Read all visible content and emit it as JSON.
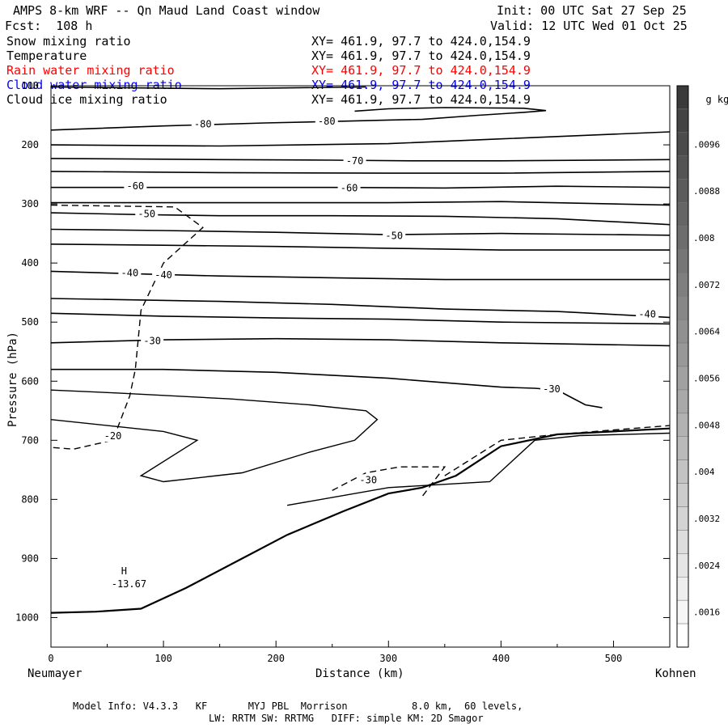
{
  "header": {
    "title": "AMPS 8-km WRF -- Qn Maud Land Coast window",
    "init": "Init: 00 UTC Sat 27 Sep 25",
    "fcst": "Fcst:  108 h",
    "valid": "Valid: 12 UTC Wed 01 Oct 25"
  },
  "fields": [
    {
      "name": "Snow mixing ratio",
      "xy": "XY= 461.9, 97.7 to 424.0,154.9",
      "color": "#000000"
    },
    {
      "name": "Temperature",
      "xy": "XY= 461.9, 97.7 to 424.0,154.9",
      "color": "#000000"
    },
    {
      "name": "Rain water mixing ratio",
      "xy": "XY= 461.9, 97.7 to 424.0,154.9",
      "color": "#ff0000"
    },
    {
      "name": "Cloud water mixing ratio",
      "xy": "XY= 461.9, 97.7 to 424.0,154.9",
      "color": "#0000ff"
    },
    {
      "name": "Cloud ice mixing ratio",
      "xy": "XY= 461.9, 97.7 to 424.0,154.9",
      "color": "#000000"
    }
  ],
  "chart_data": {
    "type": "contour",
    "xlabel": "Distance (km)",
    "ylabel": "Pressure (hPa)",
    "xlim": [
      0,
      550
    ],
    "ylim": [
      1050,
      100
    ],
    "x_ticks": [
      0,
      100,
      200,
      300,
      400,
      500
    ],
    "y_ticks": [
      100,
      200,
      300,
      400,
      500,
      600,
      700,
      800,
      900,
      1000
    ],
    "x_endpoints": {
      "left": "Neumayer",
      "right": "Kohnen"
    },
    "isotherms": [
      {
        "label": "-80",
        "points": [
          [
            0,
            102
          ],
          [
            150,
            105
          ],
          [
            280,
            102
          ]
        ]
      },
      {
        "label": "-80",
        "points": [
          [
            0,
            175
          ],
          [
            100,
            168
          ],
          [
            190,
            163
          ],
          [
            260,
            160
          ],
          [
            300,
            158
          ],
          [
            330,
            157
          ],
          [
            380,
            150
          ],
          [
            420,
            145
          ],
          [
            440,
            142
          ],
          [
            420,
            138
          ],
          [
            350,
            137
          ],
          [
            300,
            139
          ],
          [
            270,
            143
          ]
        ],
        "labels_at": [
          [
            135,
            165
          ],
          [
            245,
            160
          ]
        ]
      },
      {
        "label": "",
        "points": [
          [
            0,
            200
          ],
          [
            150,
            202
          ],
          [
            300,
            198
          ],
          [
            400,
            190
          ],
          [
            550,
            178
          ]
        ]
      },
      {
        "label": "-70",
        "points": [
          [
            0,
            223
          ],
          [
            150,
            225
          ],
          [
            250,
            226
          ],
          [
            320,
            227
          ],
          [
            400,
            227
          ],
          [
            550,
            225
          ]
        ],
        "labels_at": [
          [
            270,
            227
          ]
        ]
      },
      {
        "label": "",
        "points": [
          [
            0,
            245
          ],
          [
            150,
            247
          ],
          [
            300,
            248
          ],
          [
            400,
            248
          ],
          [
            550,
            245
          ]
        ]
      },
      {
        "label": "-60",
        "points": [
          [
            0,
            272
          ],
          [
            70,
            272
          ],
          [
            150,
            272
          ],
          [
            250,
            272
          ],
          [
            350,
            273
          ],
          [
            450,
            270
          ],
          [
            550,
            272
          ]
        ],
        "labels_at": [
          [
            75,
            270
          ],
          [
            265,
            273
          ]
        ]
      },
      {
        "label": "",
        "points": [
          [
            0,
            298
          ],
          [
            100,
            298
          ],
          [
            200,
            298
          ],
          [
            300,
            298
          ],
          [
            400,
            296
          ],
          [
            550,
            302
          ]
        ]
      },
      {
        "label": "-50",
        "points": [
          [
            0,
            315
          ],
          [
            80,
            318
          ],
          [
            150,
            320
          ],
          [
            250,
            320
          ],
          [
            350,
            321
          ],
          [
            450,
            325
          ],
          [
            550,
            335
          ]
        ],
        "labels_at": [
          [
            85,
            317
          ]
        ]
      },
      {
        "label": "-50",
        "points": [
          [
            0,
            343
          ],
          [
            100,
            345
          ],
          [
            200,
            348
          ],
          [
            300,
            352
          ],
          [
            400,
            350
          ],
          [
            550,
            353
          ]
        ],
        "labels_at": [
          [
            305,
            354
          ]
        ]
      },
      {
        "label": "",
        "points": [
          [
            0,
            368
          ],
          [
            100,
            370
          ],
          [
            200,
            372
          ],
          [
            300,
            375
          ],
          [
            400,
            378
          ],
          [
            550,
            378
          ]
        ]
      },
      {
        "label": "-40",
        "points": [
          [
            0,
            414
          ],
          [
            70,
            418
          ],
          [
            150,
            422
          ],
          [
            250,
            425
          ],
          [
            350,
            428
          ],
          [
            450,
            428
          ],
          [
            550,
            428
          ]
        ],
        "labels_at": [
          [
            70,
            417
          ],
          [
            100,
            420
          ]
        ]
      },
      {
        "label": "-40",
        "points": [
          [
            0,
            460
          ],
          [
            150,
            465
          ],
          [
            250,
            470
          ],
          [
            350,
            478
          ],
          [
            450,
            482
          ],
          [
            510,
            488
          ],
          [
            550,
            492
          ]
        ],
        "labels_at": [
          [
            530,
            487
          ]
        ]
      },
      {
        "label": "",
        "points": [
          [
            0,
            485
          ],
          [
            100,
            490
          ],
          [
            200,
            493
          ],
          [
            300,
            495
          ],
          [
            400,
            500
          ],
          [
            550,
            503
          ]
        ]
      },
      {
        "label": "-30",
        "points": [
          [
            0,
            535
          ],
          [
            100,
            530
          ],
          [
            200,
            528
          ],
          [
            300,
            530
          ],
          [
            400,
            535
          ],
          [
            550,
            540
          ]
        ],
        "labels_at": [
          [
            90,
            532
          ]
        ]
      },
      {
        "label": "-30",
        "points": [
          [
            0,
            580
          ],
          [
            100,
            580
          ],
          [
            200,
            585
          ],
          [
            300,
            595
          ],
          [
            400,
            610
          ],
          [
            430,
            612
          ],
          [
            450,
            615
          ],
          [
            460,
            625
          ],
          [
            475,
            640
          ],
          [
            490,
            645
          ]
        ],
        "labels_at": [
          [
            445,
            613
          ]
        ]
      }
    ],
    "surface_contours": [
      {
        "label": "-20",
        "points": [
          [
            0,
            665
          ],
          [
            100,
            685
          ],
          [
            130,
            700
          ],
          [
            80,
            760
          ],
          [
            100,
            770
          ],
          [
            170,
            755
          ],
          [
            230,
            720
          ],
          [
            270,
            700
          ],
          [
            290,
            665
          ],
          [
            280,
            650
          ],
          [
            230,
            640
          ],
          [
            160,
            630
          ],
          [
            60,
            620
          ],
          [
            0,
            615
          ]
        ],
        "labels_at": [
          [
            55,
            693
          ]
        ]
      },
      {
        "label": "-30",
        "points": [
          [
            210,
            810
          ],
          [
            300,
            780
          ],
          [
            390,
            770
          ],
          [
            430,
            700
          ],
          [
            470,
            692
          ],
          [
            550,
            688
          ]
        ],
        "labels_at": [
          [
            282,
            767
          ]
        ]
      }
    ],
    "snow_mixing_dashed": [
      {
        "points": [
          [
            0,
            302
          ],
          [
            110,
            305
          ],
          [
            135,
            340
          ],
          [
            100,
            400
          ],
          [
            80,
            480
          ],
          [
            75,
            580
          ],
          [
            70,
            625
          ],
          [
            55,
            700
          ],
          [
            20,
            715
          ],
          [
            0,
            712
          ]
        ]
      },
      {
        "points": [
          [
            250,
            785
          ],
          [
            280,
            755
          ],
          [
            310,
            745
          ],
          [
            350,
            745
          ],
          [
            330,
            795
          ]
        ]
      },
      {
        "points": [
          [
            350,
            760
          ],
          [
            400,
            700
          ],
          [
            450,
            690
          ],
          [
            550,
            675
          ]
        ]
      }
    ],
    "min_marker": {
      "label": "H",
      "value": "-13.67",
      "x": 65,
      "p": 938
    },
    "colorbar": {
      "unit": "g kg",
      "unit_exp": "-1",
      "ticks": [
        ".0096",
        ".0088",
        ".008",
        ".0072",
        ".0064",
        ".0056",
        ".0048",
        ".004",
        ".0032",
        ".0024",
        ".0016"
      ],
      "max_color": "#3a3a3a",
      "min_color": "#ffffff"
    }
  },
  "footer": {
    "line1": "Model Info: V4.3.3   KF       MYJ PBL  Morrison           8.0 km,  60 levels,",
    "line2": "LW: RRTM SW: RRTMG   DIFF: simple KM: 2D Smagor"
  }
}
